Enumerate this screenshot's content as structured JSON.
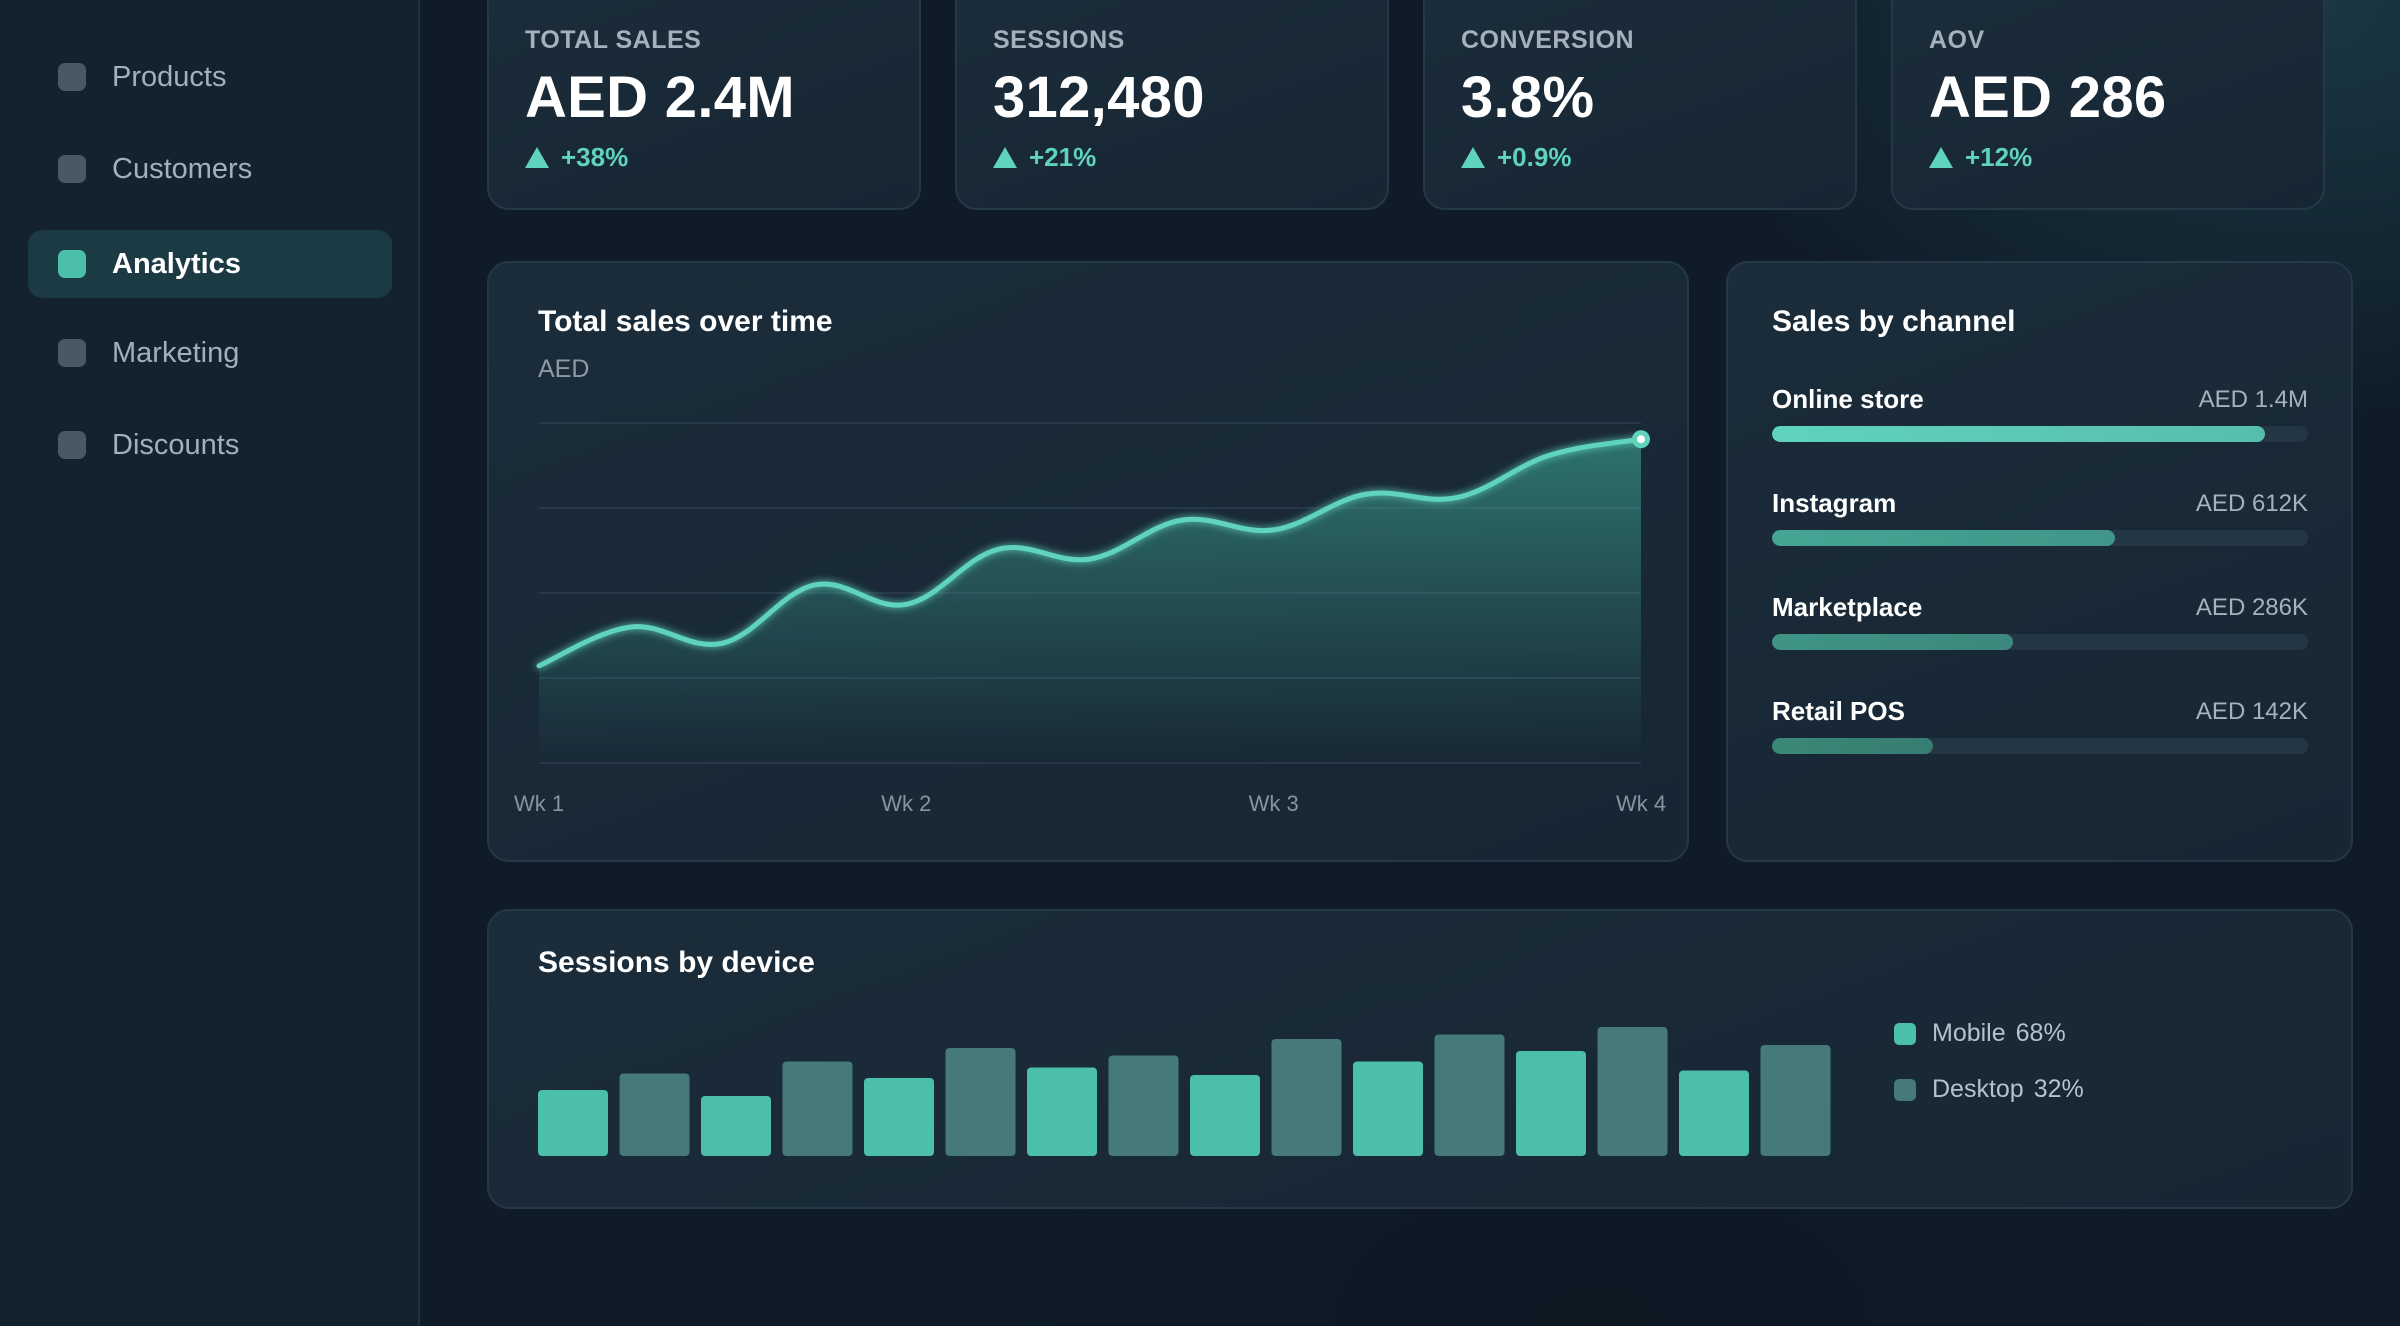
{
  "sidebar": {
    "items": [
      {
        "label": "Products",
        "active": false
      },
      {
        "label": "Customers",
        "active": false
      },
      {
        "label": "Analytics",
        "active": true
      },
      {
        "label": "Marketing",
        "active": false
      },
      {
        "label": "Discounts",
        "active": false
      }
    ]
  },
  "kpis": [
    {
      "label": "TOTAL SALES",
      "value": "AED 2.4M",
      "delta": "+38%"
    },
    {
      "label": "SESSIONS",
      "value": "312,480",
      "delta": "+21%"
    },
    {
      "label": "CONVERSION",
      "value": "3.8%",
      "delta": "+0.9%"
    },
    {
      "label": "AOV",
      "value": "AED 286",
      "delta": "+12%"
    }
  ],
  "sales_chart": {
    "title": "Total sales over time",
    "unit": "AED"
  },
  "channels": {
    "title": "Sales by channel",
    "items": [
      {
        "name": "Online store",
        "value": "AED 1.4M",
        "fraction": 0.92,
        "color": "#5fd3bc"
      },
      {
        "name": "Instagram",
        "value": "AED 612K",
        "fraction": 0.64,
        "color": "#45a593"
      },
      {
        "name": "Marketplace",
        "value": "AED 286K",
        "fraction": 0.45,
        "color": "#3f9585"
      },
      {
        "name": "Retail POS",
        "value": "AED 142K",
        "fraction": 0.3,
        "color": "#3a8878"
      }
    ]
  },
  "devices": {
    "title": "Sessions by device",
    "legend": [
      {
        "name": "Mobile",
        "pct": "68%",
        "color": "#4cbfa8"
      },
      {
        "name": "Desktop",
        "pct": "32%",
        "color": "#457a78"
      }
    ]
  },
  "colors": {
    "accent": "#5fd3bc",
    "background": "#0f1c28",
    "card": "#1a2a38"
  },
  "chart_data": [
    {
      "type": "area",
      "title": "Total sales over time",
      "ylabel": "AED",
      "x_ticks": [
        "Wk 1",
        "Wk 2",
        "Wk 3",
        "Wk 4"
      ],
      "x": [
        1,
        1.25,
        1.5,
        1.75,
        2,
        2.25,
        2.5,
        2.75,
        3,
        3.25,
        3.5,
        3.75,
        4
      ],
      "y": [
        0.3,
        0.42,
        0.37,
        0.55,
        0.49,
        0.66,
        0.63,
        0.75,
        0.72,
        0.83,
        0.82,
        0.95,
        1.0
      ],
      "ylim": [
        0,
        1.05
      ],
      "grid": true
    },
    {
      "type": "bar",
      "title": "Sessions by device",
      "values": [
        44,
        55,
        40,
        63,
        52,
        72,
        59,
        67,
        54,
        78,
        63,
        81,
        70,
        86,
        57,
        74
      ],
      "series_by_index": [
        "Mobile",
        "Desktop",
        "Mobile",
        "Desktop",
        "Mobile",
        "Desktop",
        "Mobile",
        "Desktop",
        "Mobile",
        "Desktop",
        "Mobile",
        "Desktop",
        "Mobile",
        "Desktop",
        "Mobile",
        "Desktop"
      ],
      "ylim": [
        0,
        100
      ],
      "legend": [
        "Mobile 68%",
        "Desktop 32%"
      ]
    }
  ]
}
